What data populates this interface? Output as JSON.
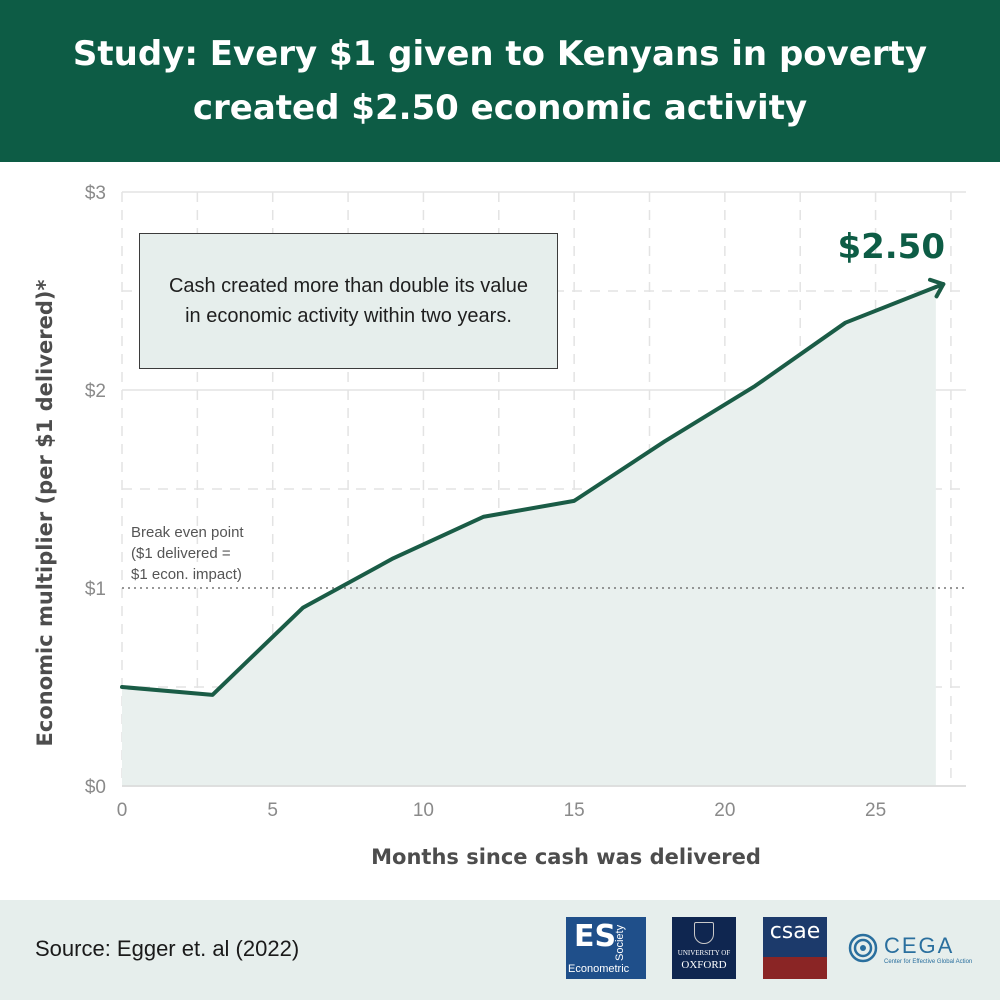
{
  "header": {
    "title": "Study: Every $1 given to Kenyans in poverty created $2.50 economic activity"
  },
  "callout": {
    "text": "Cash created more than double its value in economic activity within two years."
  },
  "annotations": {
    "break_even": [
      "Break even point",
      "($1 delivered =",
      "$1 econ. impact)"
    ],
    "end_value": "$2.50"
  },
  "chart_data": {
    "type": "area",
    "title": "Study: Every $1 given to Kenyans in poverty created $2.50 economic activity",
    "xlabel": "Months since cash was delivered",
    "ylabel": "Economic multiplier (per $1 delivered)*",
    "x": [
      0,
      3,
      6,
      9,
      12,
      15,
      18,
      21,
      24,
      27
    ],
    "series": [
      {
        "name": "Economic multiplier",
        "values": [
          0.5,
          0.46,
          0.9,
          1.15,
          1.36,
          1.44,
          1.74,
          2.02,
          2.34,
          2.52
        ]
      }
    ],
    "xlim": [
      0,
      28
    ],
    "ylim": [
      0,
      3
    ],
    "xticks": [
      0,
      5,
      10,
      15,
      20,
      25
    ],
    "xtick_labels": [
      "0",
      "5",
      "10",
      "15",
      "20",
      "25"
    ],
    "yticks": [
      0,
      1,
      2,
      3
    ],
    "ytick_labels": [
      "$0",
      "$1",
      "$2",
      "$3"
    ],
    "reference_line": {
      "y": 1,
      "style": "dotted"
    },
    "grid": true,
    "colors": {
      "line": "#1a5c46",
      "fill": "#e9f0ee",
      "grid": "#e3e3e3",
      "reference": "#777777"
    }
  },
  "footer": {
    "source": "Source: Egger et. al (2022)",
    "logos": {
      "es": {
        "main": "ES",
        "side": "Society",
        "bottom": "Econometric"
      },
      "oxford": {
        "small": "UNIVERSITY OF",
        "big": "OXFORD"
      },
      "csae": {
        "text": "csae"
      },
      "cega": {
        "word": "CEGA",
        "sub": "Center for Effective Global Action"
      }
    }
  },
  "colors": {
    "brand": "#0d5c45",
    "footer_bg": "#e6eeec"
  }
}
